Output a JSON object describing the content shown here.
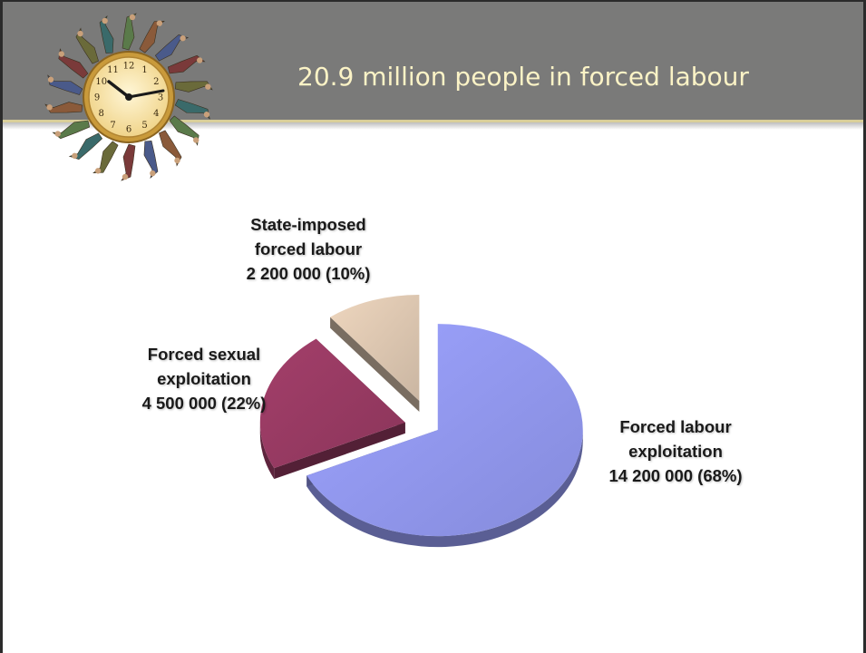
{
  "slide": {
    "title": "20.9 million people in forced labour",
    "logo_icon": "clock-with-people-icon"
  },
  "chart_data": {
    "type": "pie",
    "title": "",
    "exploded": true,
    "style": "3d",
    "slices": [
      {
        "name": "Forced labour exploitation",
        "value": 14200000,
        "percent": 68,
        "label_lines": [
          "Forced labour",
          "exploitation",
          "14 200 000 (68%)"
        ],
        "color": "#9197ee"
      },
      {
        "name": "Forced sexual exploitation",
        "value": 4500000,
        "percent": 22,
        "label_lines": [
          "Forced sexual",
          "exploitation",
          "4 500 000 (22%)"
        ],
        "color": "#973a62"
      },
      {
        "name": "State-imposed forced labour",
        "value": 2200000,
        "percent": 10,
        "label_lines": [
          "State-imposed",
          "forced labour",
          "2 200 000 (10%)"
        ],
        "color": "#dcc6b0"
      }
    ]
  }
}
